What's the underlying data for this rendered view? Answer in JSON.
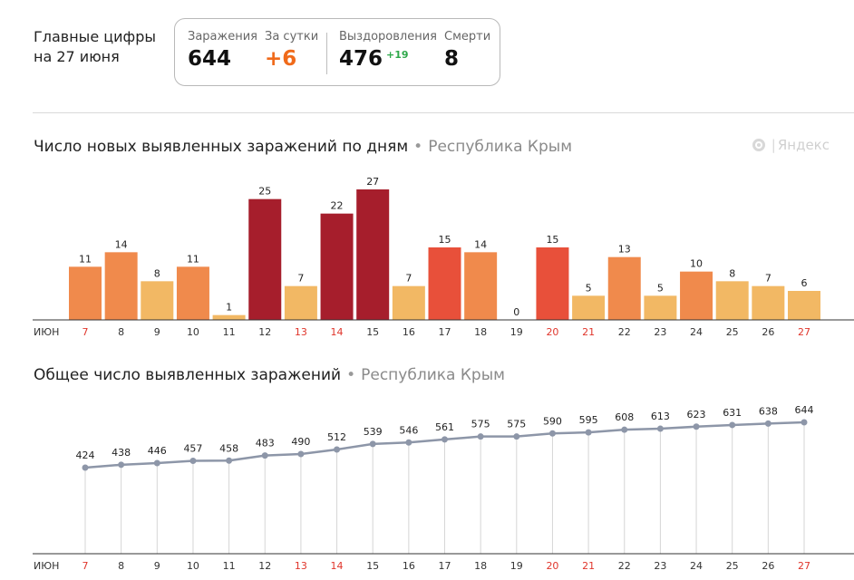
{
  "summary": {
    "title_line1": "Главные цифры",
    "title_line2": "на 27 июня",
    "infections_label": "Заражения",
    "infections_value": "644",
    "daily_label": "За сутки",
    "daily_value": "+6",
    "recoveries_label": "Выздоровления",
    "recoveries_value": "476",
    "recoveries_delta": "+19",
    "deaths_label": "Смерти",
    "deaths_value": "8"
  },
  "logo_text": "Яндекс",
  "colors": {
    "low": "#f2b864",
    "mid": "#f08a4c",
    "high": "#e8503a",
    "peak": "#a61e2c",
    "line": "#8d96a8",
    "weekend_tick": "#e0352b"
  },
  "chart_data": [
    {
      "type": "bar",
      "title": "Число новых выявленных заражений по дням",
      "subtitle": "Республика Крым",
      "month_label": "ИЮН",
      "categories": [
        "7",
        "8",
        "9",
        "10",
        "11",
        "12",
        "13",
        "14",
        "15",
        "16",
        "17",
        "18",
        "19",
        "20",
        "21",
        "22",
        "23",
        "24",
        "25",
        "26",
        "27"
      ],
      "weekend_days": [
        "7",
        "13",
        "14",
        "20",
        "21",
        "27"
      ],
      "values": [
        11,
        14,
        8,
        11,
        1,
        25,
        7,
        22,
        27,
        7,
        15,
        14,
        0,
        15,
        5,
        13,
        5,
        10,
        8,
        7,
        6
      ],
      "ylim": [
        0,
        27
      ]
    },
    {
      "type": "line",
      "title": "Общее число выявленных заражений",
      "subtitle": "Республика Крым",
      "month_label": "ИЮН",
      "categories": [
        "7",
        "8",
        "9",
        "10",
        "11",
        "12",
        "13",
        "14",
        "15",
        "16",
        "17",
        "18",
        "19",
        "20",
        "21",
        "22",
        "23",
        "24",
        "25",
        "26",
        "27"
      ],
      "weekend_days": [
        "7",
        "13",
        "14",
        "20",
        "21",
        "27"
      ],
      "values": [
        424,
        438,
        446,
        457,
        458,
        483,
        490,
        512,
        539,
        546,
        561,
        575,
        575,
        590,
        595,
        608,
        613,
        623,
        631,
        638,
        644
      ]
    }
  ]
}
